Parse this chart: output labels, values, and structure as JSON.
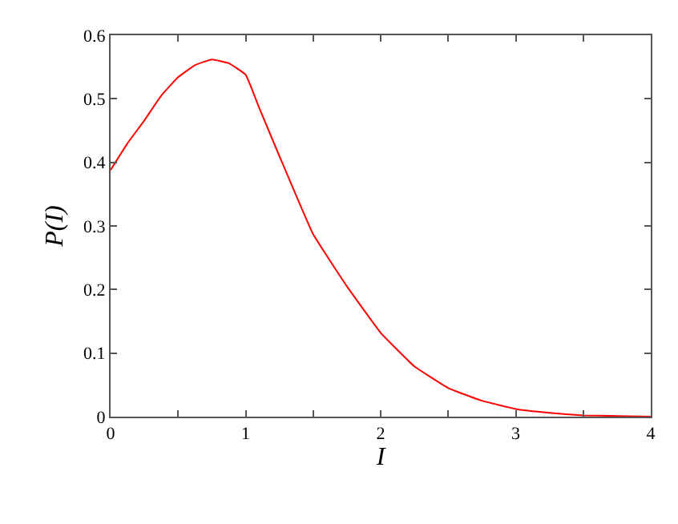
{
  "chart_data": {
    "type": "line",
    "xlabel": "I",
    "ylabel": "P(I)",
    "series": [
      {
        "color": "#ff0000",
        "x": [
          0,
          0.125,
          0.25,
          0.375,
          0.5,
          0.625,
          0.75,
          0.875,
          1,
          1.1,
          1.25,
          1.5,
          1.75,
          2,
          2.25,
          2.5,
          2.75,
          3,
          3.25,
          3.5,
          3.75,
          4
        ],
        "values": [
          0.388,
          0.43,
          0.466,
          0.505,
          0.534,
          0.553,
          0.562,
          0.556,
          0.538,
          0.486,
          0.41,
          0.287,
          0.205,
          0.132,
          0.079,
          0.045,
          0.025,
          0.012,
          0.006,
          0.002,
          0.001,
          0.0
        ]
      }
    ],
    "xlim": [
      0,
      4
    ],
    "ylim": [
      0,
      0.6
    ],
    "xticks": [
      0,
      {
        "value": 0.5,
        "label": null
      },
      1,
      {
        "value": 1.5,
        "label": null
      },
      2,
      {
        "value": 2.5,
        "label": null
      },
      3,
      {
        "value": 3.5,
        "label": null
      },
      4
    ],
    "yticks": [
      0,
      0.1,
      0.2,
      0.3,
      0.4,
      0.5,
      0.6
    ],
    "marker": "none",
    "line_style": "solid"
  }
}
